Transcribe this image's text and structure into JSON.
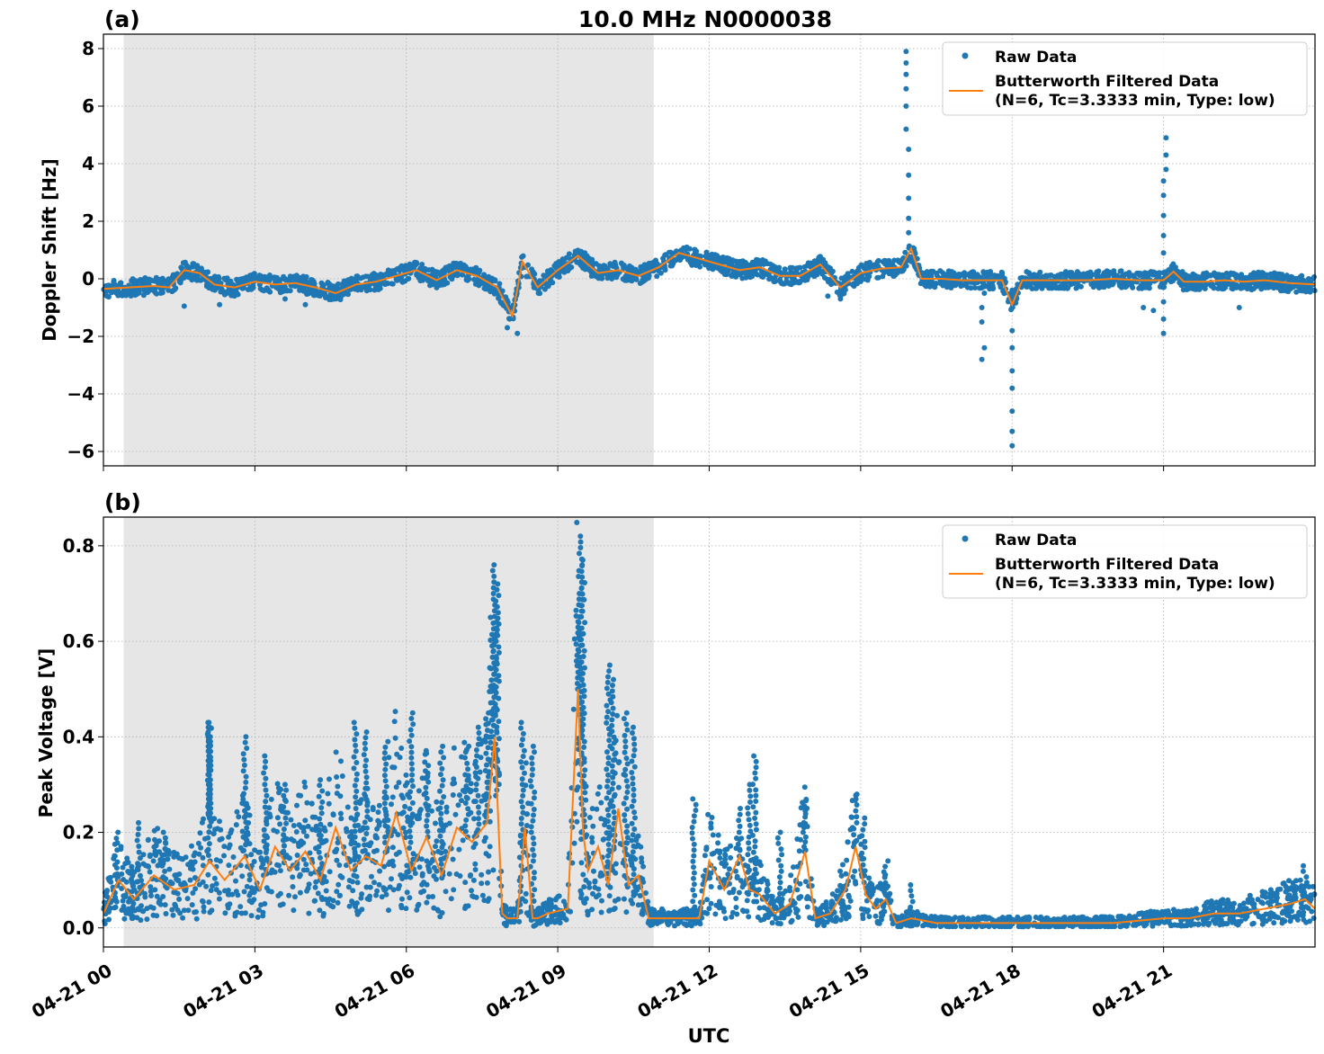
{
  "figure": {
    "title": "10.0 MHz N0000038",
    "xlabel": "UTC",
    "x_tick_labels": [
      "04-21 00",
      "04-21 03",
      "04-21 06",
      "04-21 09",
      "04-21 12",
      "04-21 15",
      "04-21 18",
      "04-21 21"
    ],
    "colors": {
      "raw": "#1f77b4",
      "filtered": "#ff7f0e",
      "night_shade": "#e6e6e6",
      "grid": "#b0b0b0"
    }
  },
  "chart_data": [
    {
      "type": "scatter",
      "panel_label": "(a)",
      "ylabel": "Doppler Shift [Hz]",
      "xlabel": "UTC",
      "x_unit": "hours since 04-21 00 UTC",
      "xlim": [
        0,
        24
      ],
      "ylim": [
        -6.5,
        8.5
      ],
      "y_ticks": [
        8,
        6,
        4,
        2,
        0,
        -2,
        -4,
        -6
      ],
      "y_tick_labels": [
        "8",
        "6",
        "4",
        "2",
        "0",
        "−2",
        "−4",
        "−6"
      ],
      "shaded_interval": [
        0.4,
        10.9
      ],
      "grid": true,
      "legend": {
        "position": "top-right",
        "entries": [
          "Raw Data",
          "Butterworth Filtered Data",
          "(N=6, Tc=3.3333 min, Type: low)"
        ]
      },
      "series": [
        {
          "name": "Butterworth Filtered Data",
          "x": [
            0,
            0.5,
            1,
            1.3,
            1.6,
            1.9,
            2.2,
            2.6,
            3,
            3.4,
            3.8,
            4.2,
            4.6,
            5,
            5.4,
            5.8,
            6.2,
            6.6,
            7,
            7.4,
            7.8,
            8.1,
            8.3,
            8.6,
            9,
            9.4,
            9.8,
            10.2,
            10.6,
            11,
            11.4,
            11.8,
            12.2,
            12.6,
            13,
            13.4,
            13.8,
            14.2,
            14.6,
            15,
            15.4,
            15.8,
            16,
            16.2,
            16.6,
            17,
            17.4,
            17.8,
            18,
            18.2,
            18.6,
            19,
            19.5,
            20,
            20.5,
            21,
            21.2,
            21.4,
            21.8,
            22.2,
            22.6,
            23,
            23.5,
            24
          ],
          "y": [
            -0.35,
            -0.3,
            -0.25,
            -0.3,
            0.3,
            0.2,
            -0.2,
            -0.3,
            -0.1,
            -0.2,
            -0.15,
            -0.3,
            -0.5,
            -0.2,
            -0.1,
            0.1,
            0.3,
            -0.05,
            0.3,
            0.1,
            -0.3,
            -1.3,
            0.6,
            -0.3,
            0.3,
            0.8,
            0.2,
            0.3,
            0.1,
            0.4,
            0.9,
            0.7,
            0.5,
            0.3,
            0.4,
            0.1,
            0.1,
            0.5,
            -0.3,
            0.2,
            0.35,
            0.4,
            1.05,
            0.0,
            0.0,
            -0.05,
            -0.05,
            -0.05,
            -0.9,
            -0.05,
            -0.05,
            -0.05,
            -0.05,
            0.0,
            -0.05,
            -0.05,
            0.25,
            -0.1,
            -0.1,
            -0.05,
            -0.1,
            -0.05,
            -0.15,
            -0.2
          ]
        },
        {
          "name": "Raw Data",
          "style": "dense band around filtered series",
          "band_halfwidth": 0.3,
          "outliers": {
            "x": [
              15.9,
              15.9,
              15.9,
              15.9,
              15.9,
              15.9,
              15.95,
              15.95,
              15.95,
              15.95,
              15.95,
              17.4,
              17.4,
              17.4,
              17.45,
              17.45,
              18.0,
              18.0,
              18.0,
              18.0,
              18.0,
              18.0,
              18.0,
              18.0,
              18.0,
              21.0,
              21.0,
              21.0,
              21.0,
              21.0,
              21.05,
              21.05,
              21.05,
              21.0,
              21.0,
              21.0,
              16.0,
              14.35,
              14.6,
              8.2,
              8.0,
              4.0,
              3.6,
              2.3,
              1.6,
              20.6,
              20.8,
              22.5
            ],
            "y": [
              7.9,
              7.5,
              7.1,
              6.6,
              6.0,
              5.2,
              4.5,
              3.6,
              2.8,
              2.1,
              1.6,
              -1.0,
              -1.5,
              -2.8,
              -2.4,
              -0.5,
              -0.4,
              -1.0,
              -1.8,
              -2.4,
              -3.2,
              -3.8,
              -4.6,
              -5.3,
              -5.8,
              3.4,
              2.9,
              2.2,
              1.5,
              0.9,
              4.9,
              4.3,
              3.8,
              -0.8,
              -1.4,
              -1.9,
              0.6,
              -0.6,
              -0.7,
              -1.9,
              -1.7,
              -0.9,
              -0.7,
              -0.9,
              -0.95,
              -1.0,
              -1.1,
              -1.0
            ]
          }
        }
      ]
    },
    {
      "type": "scatter",
      "panel_label": "(b)",
      "ylabel": "Peak Voltage [V]",
      "xlabel": "UTC",
      "x_unit": "hours since 04-21 00 UTC",
      "xlim": [
        0,
        24
      ],
      "ylim": [
        -0.04,
        0.86
      ],
      "y_ticks": [
        0.8,
        0.6,
        0.4,
        0.2,
        0.0
      ],
      "y_tick_labels": [
        "0.8",
        "0.6",
        "0.4",
        "0.2",
        "0.0"
      ],
      "shaded_interval": [
        0.4,
        10.9
      ],
      "grid": true,
      "legend": {
        "position": "top-right",
        "entries": [
          "Raw Data",
          "Butterworth Filtered Data",
          "(N=6, Tc=3.3333 min, Type: low)"
        ]
      },
      "series": [
        {
          "name": "Butterworth Filtered Data",
          "x": [
            0,
            0.3,
            0.6,
            1,
            1.4,
            1.8,
            2.1,
            2.4,
            2.8,
            3.1,
            3.4,
            3.7,
            4,
            4.3,
            4.6,
            4.9,
            5.2,
            5.5,
            5.8,
            6.1,
            6.4,
            6.7,
            7,
            7.3,
            7.6,
            7.75,
            7.9,
            8.0,
            8.2,
            8.35,
            8.5,
            8.6,
            8.8,
            9.2,
            9.4,
            9.5,
            9.6,
            9.8,
            10.0,
            10.2,
            10.4,
            10.6,
            10.8,
            11.2,
            11.6,
            11.8,
            12.0,
            12.3,
            12.6,
            12.8,
            13.0,
            13.3,
            13.6,
            13.9,
            14.1,
            14.4,
            14.7,
            14.9,
            15.1,
            15.3,
            15.5,
            15.7,
            16,
            16.5,
            17,
            17.5,
            18,
            18.5,
            19,
            19.5,
            20,
            20.5,
            21,
            21.5,
            22,
            22.5,
            23,
            23.5,
            23.8,
            24
          ],
          "y": [
            0.03,
            0.1,
            0.06,
            0.11,
            0.08,
            0.09,
            0.14,
            0.1,
            0.15,
            0.08,
            0.17,
            0.12,
            0.16,
            0.1,
            0.21,
            0.12,
            0.15,
            0.13,
            0.24,
            0.12,
            0.19,
            0.11,
            0.21,
            0.18,
            0.22,
            0.4,
            0.03,
            0.02,
            0.02,
            0.21,
            0.02,
            0.02,
            0.03,
            0.04,
            0.5,
            0.2,
            0.12,
            0.17,
            0.09,
            0.25,
            0.09,
            0.11,
            0.02,
            0.02,
            0.02,
            0.02,
            0.14,
            0.08,
            0.15,
            0.08,
            0.07,
            0.03,
            0.05,
            0.16,
            0.02,
            0.03,
            0.08,
            0.17,
            0.07,
            0.04,
            0.06,
            0.01,
            0.02,
            0.01,
            0.01,
            0.01,
            0.01,
            0.01,
            0.01,
            0.01,
            0.01,
            0.015,
            0.02,
            0.02,
            0.03,
            0.03,
            0.04,
            0.05,
            0.06,
            0.04
          ]
        },
        {
          "name": "Raw Data",
          "style": "dense band around filtered series",
          "band_halfwidth": 0.045,
          "outliers": {
            "x": [
              2.1,
              2.1,
              2.1,
              2.1,
              2.1,
              2.1,
              2.1,
              2.1,
              2.1,
              2.1,
              2.1,
              2.1,
              2.1,
              2.1,
              2.1,
              2.1,
              2.1,
              2.1,
              2.1,
              2.1,
              2.1,
              2.1,
              2.1,
              2.1,
              2.1,
              2.1,
              2.1,
              2.1,
              2.1,
              2.1,
              2.1,
              2.1,
              2.1,
              2.1,
              2.1,
              2.1,
              2.1,
              2.1,
              2.1,
              2.1,
              2.1,
              2.1,
              2.1,
              2.1,
              2.1,
              2.1,
              2.1,
              2.1,
              2.1,
              2.1,
              2.1,
              2.1,
              2.1,
              2.1,
              2.1,
              2.1,
              2.1,
              2.1,
              2.1,
              2.1,
              2.1,
              2.1,
              2.1,
              2.1,
              2.1,
              2.1,
              2.1,
              2.1,
              2.1,
              2.1
            ],
            "y": [
              0.43,
              0.42,
              0.42,
              0.41,
              0.4,
              0.4,
              0.4,
              0.39,
              0.39,
              0.38,
              0.38,
              0.38,
              0.37,
              0.37,
              0.36,
              0.36,
              0.36,
              0.35,
              0.35,
              0.35,
              0.35,
              0.35,
              0.34,
              0.34,
              0.34,
              0.34,
              0.33,
              0.33,
              0.33,
              0.33,
              0.32,
              0.32,
              0.32,
              0.31,
              0.31,
              0.31,
              0.3,
              0.3,
              0.3,
              0.3,
              0.29,
              0.29,
              0.29,
              0.28,
              0.28,
              0.28,
              0.28,
              0.27,
              0.27,
              0.27,
              0.27,
              0.27,
              0.26,
              0.26,
              0.26,
              0.26,
              0.26,
              0.25,
              0.25,
              0.25,
              0.25,
              0.25,
              0.24,
              0.24,
              0.24,
              0.24,
              0.24,
              0.24,
              0.23,
              0.23
            ]
          },
          "spikes": {
            "x": [
              0.25,
              0.7,
              1.2,
              2.1,
              2.8,
              3.2,
              3.6,
              4.3,
              5.0,
              5.2,
              5.6,
              6.1,
              6.4,
              6.7,
              7.2,
              7.4,
              7.6,
              7.7,
              7.75,
              7.8,
              8.3,
              8.5,
              9.4,
              9.45,
              9.5,
              10.0,
              10.1,
              10.35,
              10.5,
              11.7,
              12.6,
              12.8,
              12.9,
              13.4,
              13.9,
              14.9,
              15.05,
              15.5,
              16.0,
              23.8
            ],
            "y": [
              0.2,
              0.22,
              0.2,
              0.43,
              0.4,
              0.36,
              0.3,
              0.31,
              0.43,
              0.41,
              0.39,
              0.45,
              0.34,
              0.38,
              0.38,
              0.42,
              0.45,
              0.65,
              0.76,
              0.72,
              0.43,
              0.38,
              0.7,
              0.82,
              0.77,
              0.55,
              0.52,
              0.45,
              0.42,
              0.27,
              0.25,
              0.3,
              0.36,
              0.2,
              0.22,
              0.27,
              0.23,
              0.14,
              0.09,
              0.13
            ]
          }
        }
      ]
    }
  ]
}
